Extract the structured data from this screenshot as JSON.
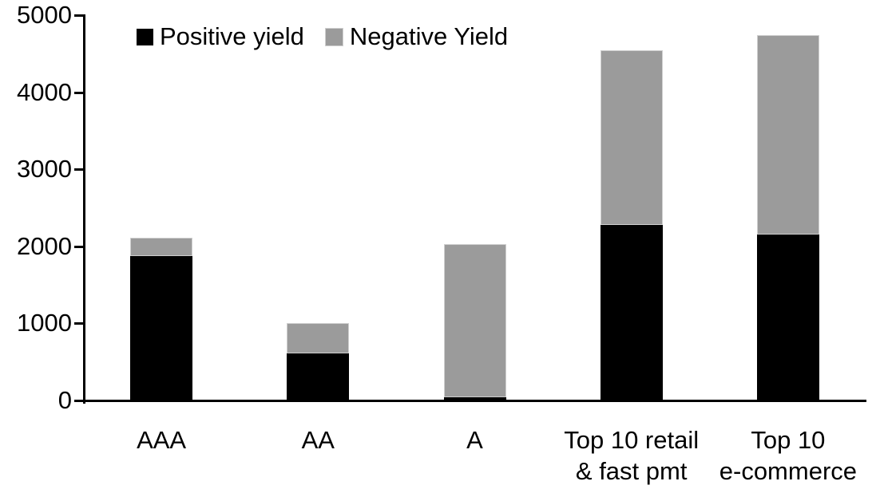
{
  "chart_data": {
    "type": "bar",
    "stacked": true,
    "title": "",
    "xlabel": "",
    "ylabel": "",
    "categories": [
      "AAA",
      "AA",
      "A",
      "Top 10 retail\n& fast pmt",
      "Top 10\ne-commerce"
    ],
    "series": [
      {
        "name": "Positive yield",
        "color": "#000000",
        "values": [
          1870,
          615,
          45,
          2275,
          2150
        ]
      },
      {
        "name": "Negative Yield",
        "color": "#9b9b9b",
        "values": [
          240,
          385,
          1985,
          2270,
          2590
        ]
      }
    ],
    "ylim": [
      0,
      5000
    ],
    "yticks": [
      0,
      1000,
      2000,
      3000,
      4000,
      5000
    ],
    "grid": false,
    "legend_position": "top"
  },
  "colors": {
    "background": "#ffffff",
    "axis": "#000000",
    "text": "#000000",
    "negative_segment_border": "#cfcfcf"
  }
}
